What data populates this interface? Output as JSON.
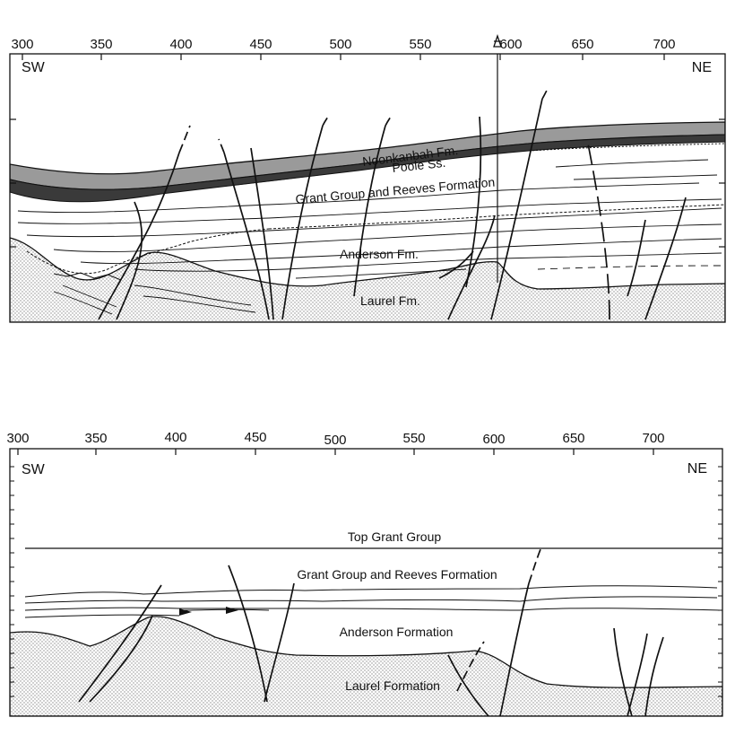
{
  "panel_top": {
    "axis_ticks": [
      "300",
      "350",
      "400",
      "450",
      "500",
      "550",
      "600",
      "650",
      "700"
    ],
    "left_direction": "SW",
    "right_direction": "NE",
    "formations": {
      "noonkanbah": "Noonkanbah Fm.",
      "poole": "Poole Ss.",
      "grant_reeves": "Grant Group and Reeves Formation",
      "anderson": "Anderson Fm.",
      "laurel": "Laurel Fm."
    }
  },
  "panel_bottom": {
    "axis_ticks": [
      "300",
      "350",
      "400",
      "450",
      "500",
      "550",
      "600",
      "650",
      "700"
    ],
    "left_direction": "SW",
    "right_direction": "NE",
    "formations": {
      "top_grant": "Top Grant Group",
      "grant_reeves": "Grant Group and Reeves Formation",
      "anderson": "Anderson Formation",
      "laurel": "Laurel Formation"
    }
  },
  "colors": {
    "ink": "#111111",
    "noonkanbah_fill": "#9a9a9a",
    "poole_fill": "#3a3a3a",
    "laurel_dots": "#8a8a8a"
  }
}
